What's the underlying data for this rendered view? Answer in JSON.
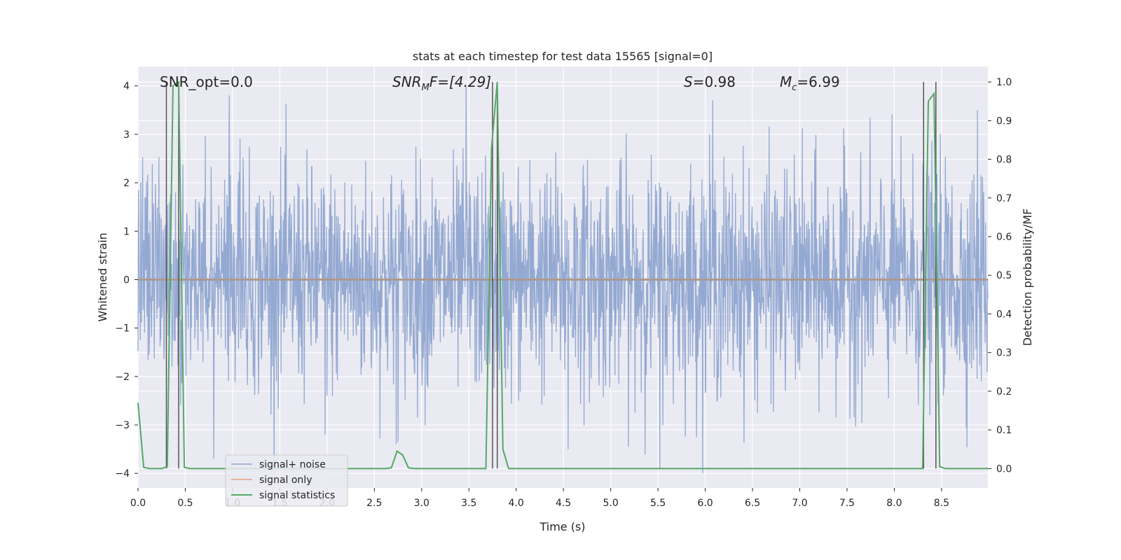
{
  "chart_data": {
    "type": "line",
    "title": "stats at each timestep for test data 15565 [signal=0]",
    "xlabel": "Time (s)",
    "ylabel_left": "Whitened strain",
    "ylabel_right": "Detection probability/MF",
    "xlim": [
      0.0,
      8.99
    ],
    "ylim_left": [
      -4.3,
      4.4
    ],
    "ylim_right": [
      -0.05,
      1.04
    ],
    "x_ticks": [
      "0.0",
      "0.5",
      "1.0",
      "1.5",
      "2.0",
      "2.5",
      "3.0",
      "3.5",
      "4.0",
      "4.5",
      "5.0",
      "5.5",
      "6.0",
      "6.5",
      "7.0",
      "7.5",
      "8.0",
      "8.5"
    ],
    "x_tick_values": [
      0.0,
      0.5,
      1.0,
      1.5,
      2.0,
      2.5,
      3.0,
      3.5,
      4.0,
      4.5,
      5.0,
      5.5,
      6.0,
      6.5,
      7.0,
      7.5,
      8.0,
      8.5
    ],
    "y_ticks_left": [
      "−4",
      "−3",
      "−2",
      "−1",
      "0",
      "1",
      "2",
      "3",
      "4"
    ],
    "y_tick_values_left": [
      -4,
      -3,
      -2,
      -1,
      0,
      1,
      2,
      3,
      4
    ],
    "y_ticks_right": [
      "0.0",
      "0.1",
      "0.2",
      "0.3",
      "0.4",
      "0.5",
      "0.6",
      "0.7",
      "0.8",
      "0.9",
      "1.0"
    ],
    "y_tick_values_right": [
      0.0,
      0.1,
      0.2,
      0.3,
      0.4,
      0.5,
      0.6,
      0.7,
      0.8,
      0.9,
      1.0
    ],
    "grid": true,
    "legend_position": "lower-left",
    "annotations": {
      "snr_opt": "SNR_opt=0.0",
      "snr_mf_main": "SNR",
      "snr_mf_sub": "M",
      "snr_mf_rest": "F=[4.29]",
      "s_main": "S",
      "s_rest": "=0.98",
      "mc_main": "M",
      "mc_sub": "c",
      "mc_rest": "=6.99"
    },
    "series": [
      {
        "name": "signal+ noise",
        "color": "#8fa5d0",
        "axis": "left",
        "kind": "dense-noise",
        "approx_range": [
          -4.0,
          4.0
        ],
        "approx_std": 1.0
      },
      {
        "name": "signal only",
        "color": "#dd8452",
        "axis": "left",
        "x": [
          0.0,
          8.99
        ],
        "y": [
          0.0,
          0.0
        ]
      },
      {
        "name": "signal statistics",
        "color": "#55a868",
        "axis": "right",
        "x": [
          0.0,
          0.06,
          0.12,
          0.18,
          0.25,
          0.31,
          0.37,
          0.43,
          0.49,
          0.55,
          0.61,
          0.67,
          2.62,
          2.68,
          2.74,
          2.8,
          2.86,
          2.92,
          3.68,
          3.74,
          3.8,
          3.86,
          3.92,
          8.3,
          8.36,
          8.42,
          8.48,
          8.54,
          8.6,
          8.99
        ],
        "y": [
          0.17,
          0.003,
          0.0,
          0.0,
          0.0,
          0.005,
          0.99,
          1.0,
          0.003,
          0.0,
          0.0,
          0.0,
          0.0,
          0.002,
          0.045,
          0.035,
          0.002,
          0.0,
          0.0,
          0.83,
          1.0,
          0.05,
          0.0,
          0.0,
          0.95,
          0.97,
          0.005,
          0.0,
          0.0,
          0.0
        ]
      }
    ],
    "vertical_lines": [
      {
        "x": 0.3,
        "color": "#555555"
      },
      {
        "x": 0.43,
        "color": "#555555"
      },
      {
        "x": 3.75,
        "color": "#555555"
      },
      {
        "x": 3.8,
        "color": "#555555"
      },
      {
        "x": 8.31,
        "color": "#555555"
      },
      {
        "x": 8.44,
        "color": "#555555"
      }
    ],
    "spike_events": [
      {
        "x": 0.8,
        "y": 3.8
      },
      {
        "x": 0.8,
        "y": -3.7
      },
      {
        "x": 1.98,
        "y": -3.2
      },
      {
        "x": 3.47,
        "y": 4.0
      },
      {
        "x": 5.52,
        "y": -3.9
      },
      {
        "x": 2.73,
        "y": -3.4
      },
      {
        "x": 8.88,
        "y": 3.5
      },
      {
        "x": 4.55,
        "y": -3.5
      },
      {
        "x": 6.08,
        "y": 3.7
      }
    ],
    "colors": {
      "plot_background": "#eaeaf2",
      "grid": "#ffffff",
      "zero_line": "#a0a0a0"
    }
  }
}
